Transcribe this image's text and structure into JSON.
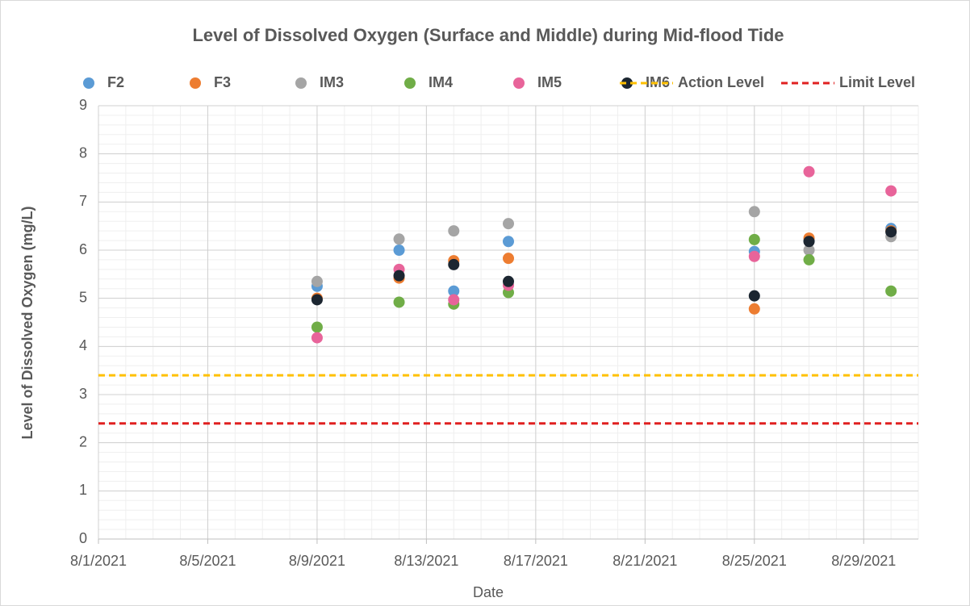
{
  "chart_data": {
    "type": "scatter",
    "title": "Level of Dissolved Oxygen (Surface and Middle) during Mid-flood Tide",
    "x_label": "Date",
    "y_label": "Level of Dissolved Oxygen (mg/L)",
    "xlim": [
      "2021-08-01",
      "2021-08-31"
    ],
    "xticks": [
      {
        "value": "2021-08-01",
        "label": "8/1/2021"
      },
      {
        "value": "2021-08-05",
        "label": "8/5/2021"
      },
      {
        "value": "2021-08-09",
        "label": "8/9/2021"
      },
      {
        "value": "2021-08-13",
        "label": "8/13/2021"
      },
      {
        "value": "2021-08-17",
        "label": "8/17/2021"
      },
      {
        "value": "2021-08-21",
        "label": "8/21/2021"
      },
      {
        "value": "2021-08-25",
        "label": "8/25/2021"
      },
      {
        "value": "2021-08-29",
        "label": "8/29/2021"
      }
    ],
    "ylim": [
      0,
      9
    ],
    "yticks": [
      0,
      1,
      2,
      3,
      4,
      5,
      6,
      7,
      8,
      9
    ],
    "grid": true,
    "legend": "top",
    "series": [
      {
        "name": "F2",
        "color": "#5b9bd5",
        "x": [
          "2021-08-09",
          "2021-08-12",
          "2021-08-14",
          "2021-08-16",
          "2021-08-25",
          "2021-08-27",
          "2021-08-30"
        ],
        "values": [
          5.25,
          6.0,
          5.15,
          6.18,
          5.97,
          6.2,
          6.45
        ]
      },
      {
        "name": "F3",
        "color": "#ed7d31",
        "x": [
          "2021-08-09",
          "2021-08-12",
          "2021-08-14",
          "2021-08-16",
          "2021-08-25",
          "2021-08-27",
          "2021-08-30"
        ],
        "values": [
          5.0,
          5.42,
          5.78,
          5.83,
          4.78,
          6.25,
          6.4
        ]
      },
      {
        "name": "IM3",
        "color": "#a5a5a5",
        "x": [
          "2021-08-09",
          "2021-08-12",
          "2021-08-14",
          "2021-08-16",
          "2021-08-25",
          "2021-08-27",
          "2021-08-30"
        ],
        "values": [
          5.35,
          6.23,
          6.4,
          6.55,
          6.8,
          6.0,
          6.28
        ]
      },
      {
        "name": "IM4",
        "color": "#70ad47",
        "x": [
          "2021-08-09",
          "2021-08-12",
          "2021-08-14",
          "2021-08-16",
          "2021-08-25",
          "2021-08-27",
          "2021-08-30"
        ],
        "values": [
          4.4,
          4.92,
          4.88,
          5.12,
          6.22,
          5.8,
          5.15
        ]
      },
      {
        "name": "IM5",
        "color": "#e8649a",
        "x": [
          "2021-08-09",
          "2021-08-12",
          "2021-08-14",
          "2021-08-16",
          "2021-08-25",
          "2021-08-27",
          "2021-08-30"
        ],
        "values": [
          4.18,
          5.6,
          4.97,
          5.27,
          5.87,
          7.63,
          7.23
        ]
      },
      {
        "name": "IM6",
        "color": "#1c2631",
        "x": [
          "2021-08-09",
          "2021-08-12",
          "2021-08-14",
          "2021-08-16",
          "2021-08-25",
          "2021-08-27",
          "2021-08-30"
        ],
        "values": [
          4.97,
          5.47,
          5.7,
          5.35,
          5.05,
          6.18,
          6.38
        ]
      },
      {
        "name": "Action Level",
        "color": "#ffc000",
        "style": "dashed",
        "x": [
          "2021-08-01",
          "2021-08-31"
        ],
        "values": [
          3.4,
          3.4
        ]
      },
      {
        "name": "Limit Level",
        "color": "#e02020",
        "style": "dashed",
        "x": [
          "2021-08-01",
          "2021-08-31"
        ],
        "values": [
          2.4,
          2.4
        ]
      }
    ]
  }
}
